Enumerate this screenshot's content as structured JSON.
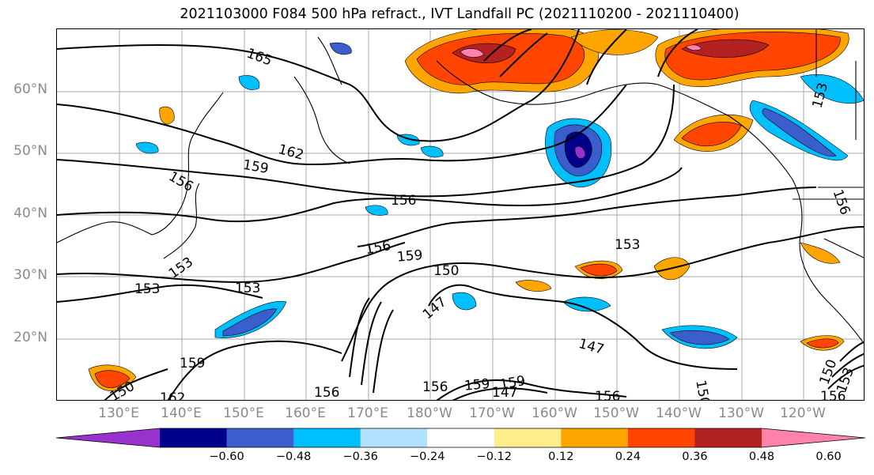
{
  "title": "2021103000 F084 500 hPa refract., IVT Landfall PC (2021110200 - 2021110400)",
  "map": {
    "lat_labels": [
      "60°N",
      "50°N",
      "40°N",
      "30°N",
      "20°N"
    ],
    "lon_labels": [
      "130°E",
      "140°E",
      "150°E",
      "160°E",
      "170°E",
      "180°W",
      "170°W",
      "160°W",
      "150°W",
      "140°W",
      "130°W",
      "120°W"
    ],
    "grid": true,
    "contour_labels": [
      "165",
      "162",
      "159",
      "156",
      "153",
      "150",
      "147",
      "159",
      "156",
      "153",
      "156",
      "153",
      "159",
      "150",
      "147",
      "147",
      "156",
      "159",
      "156",
      "153",
      "156",
      "150",
      "153",
      "153",
      "156",
      "162",
      "159",
      "150",
      "156"
    ]
  },
  "colorbar": {
    "colors": [
      "#9932CC",
      "#00008B",
      "#3A5FCD",
      "#00BFFF",
      "#B0E2FF",
      "#FFFFFF",
      "#FFEC8B",
      "#FFA500",
      "#FF4500",
      "#B22222",
      "#FF82AB"
    ],
    "ticks": [
      "−0.60",
      "−0.48",
      "−0.36",
      "−0.24",
      "−0.12",
      "0.12",
      "0.24",
      "0.36",
      "0.48",
      "0.60"
    ]
  }
}
